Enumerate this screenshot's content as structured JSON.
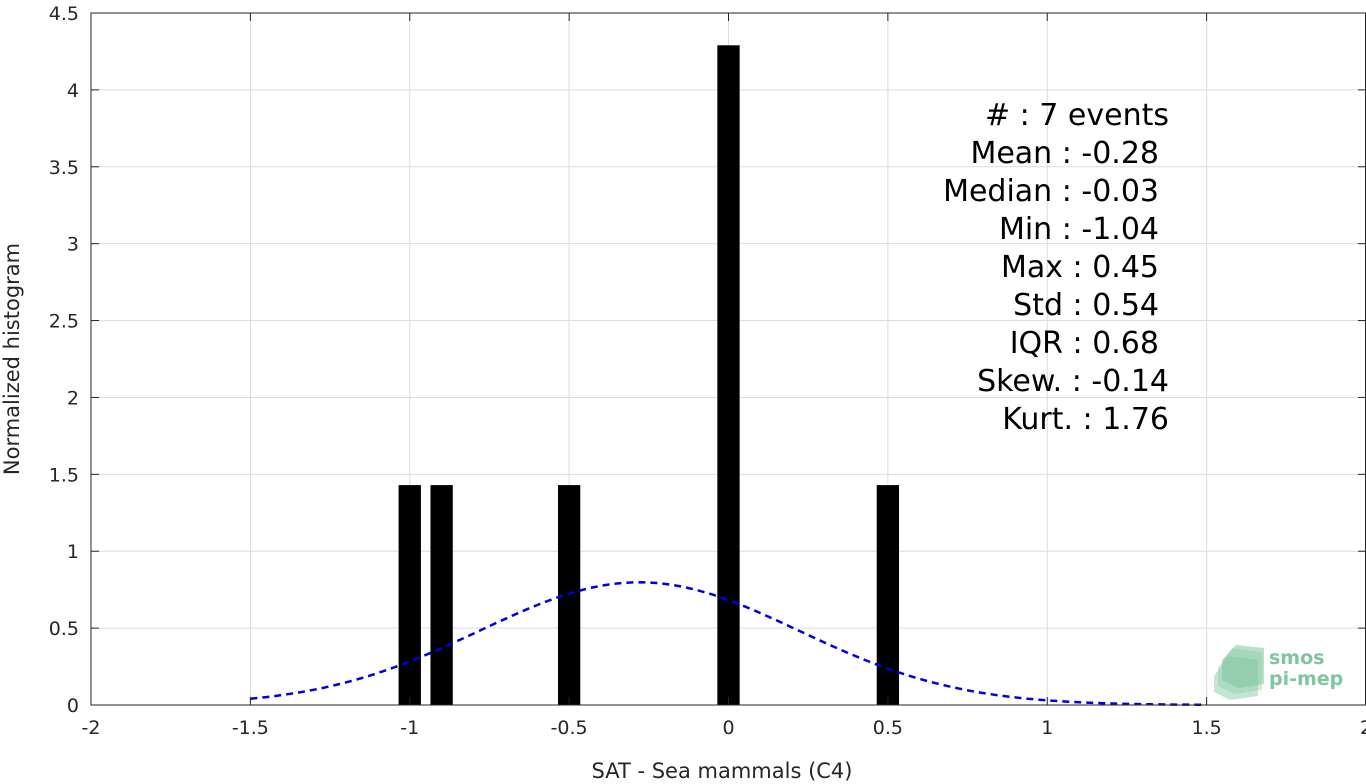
{
  "chart_data": {
    "type": "bar",
    "xlabel": "SAT - Sea mammals (C4)",
    "ylabel": "Normalized histogram",
    "xlim": [
      -2,
      2
    ],
    "ylim": [
      0,
      4.5
    ],
    "xticks": [
      -2,
      -1.5,
      -1,
      -0.5,
      0,
      0.5,
      1,
      1.5,
      2
    ],
    "xtick_labels": [
      "-2",
      "-1.5",
      "-1",
      "-0.5",
      "0",
      "0.5",
      "1",
      "1.5",
      "2"
    ],
    "yticks": [
      0,
      0.5,
      1,
      1.5,
      2,
      2.5,
      3,
      3.5,
      4,
      4.5
    ],
    "ytick_labels": [
      "0",
      "0.5",
      "1",
      "1.5",
      "2",
      "2.5",
      "3",
      "3.5",
      "4",
      "4.5"
    ],
    "grid": true,
    "bar_width": 0.07,
    "bar_color": "#000000",
    "bars": [
      {
        "x": -1.0,
        "value": 1.43
      },
      {
        "x": -0.9,
        "value": 1.43
      },
      {
        "x": -0.5,
        "value": 1.43
      },
      {
        "x": 0.0,
        "value": 4.29
      },
      {
        "x": 0.5,
        "value": 1.43
      }
    ],
    "fit_curve": {
      "style": "dashed",
      "color": "#0000dd",
      "distribution": "normal",
      "mean": -0.28,
      "std": 0.5,
      "x_range": [
        -1.5,
        1.5
      ]
    },
    "stats_lines": [
      "#  : 7 events",
      "Mean : -0.28",
      "Median : -0.03",
      "Min : -1.04",
      "Max : 0.45",
      "Std : 0.54",
      "IQR : 0.68",
      "Skew. : -0.14",
      "Kurt. : 1.76"
    ]
  },
  "logo": {
    "line1": "smos",
    "line2": "pi-mep",
    "color": "#7fc6a0"
  }
}
